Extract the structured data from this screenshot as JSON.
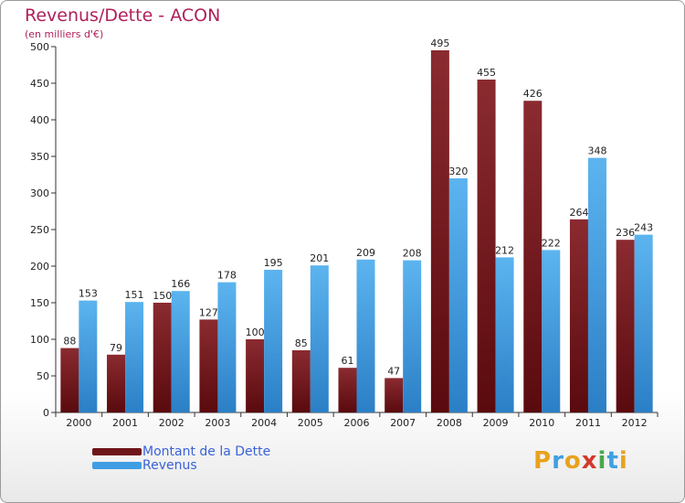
{
  "header": {
    "title": "Revenus/Dette - ACON",
    "subtitle": "(en milliers d'€)"
  },
  "chart_data": {
    "type": "bar",
    "categories": [
      "2000",
      "2001",
      "2002",
      "2003",
      "2004",
      "2005",
      "2006",
      "2007",
      "2008",
      "2009",
      "2010",
      "2011",
      "2012"
    ],
    "series": [
      {
        "name": "Montant de la Dette",
        "color": "#6e1519",
        "values": [
          88,
          79,
          150,
          127,
          100,
          85,
          61,
          47,
          495,
          455,
          426,
          264,
          236
        ]
      },
      {
        "name": "Revenus",
        "color": "#3f9ee3",
        "values": [
          153,
          151,
          166,
          178,
          195,
          201,
          209,
          208,
          320,
          212,
          222,
          348,
          243
        ]
      }
    ],
    "ylim": [
      0,
      500
    ],
    "yticks": [
      0,
      50,
      100,
      150,
      200,
      250,
      300,
      350,
      400,
      450,
      500
    ],
    "grid": false,
    "legend_position": "bottom-left"
  },
  "legend": {
    "items": [
      {
        "label": "Montant de la Dette",
        "color": "#6e1519"
      },
      {
        "label": "Revenus",
        "color": "#3f9ee3"
      }
    ]
  },
  "logo": {
    "letters": [
      "P",
      "r",
      "o",
      "x",
      "i",
      "t",
      "i"
    ],
    "colors": [
      "#e8a21e",
      "#3fa0e0",
      "#e8a21e",
      "#d23a2a",
      "#49a84a",
      "#3fa0e0",
      "#e8a21e"
    ]
  }
}
